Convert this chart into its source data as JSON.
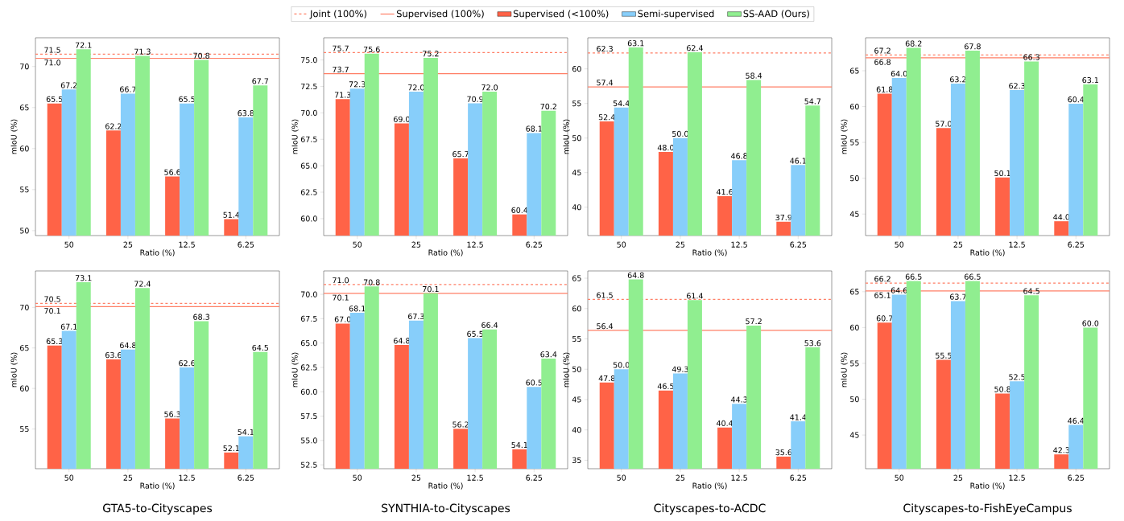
{
  "chart_data": [
    {
      "type": "bar",
      "xlabel": "Ratio (%)",
      "ylabel": "mIoU (%)",
      "categories": [
        "50",
        "25",
        "12.5",
        "6.25"
      ],
      "legend": "top",
      "series": [
        {
          "name": "Supervised (<100%)",
          "color": "#ff6347",
          "values": [
            65.5,
            62.2,
            56.6,
            51.4
          ],
          "value_labels": [
            "65.5",
            "62.2",
            "56.6",
            "51.4"
          ]
        },
        {
          "name": "Semi-supervised",
          "color": "#87cefa",
          "values": [
            67.2,
            66.7,
            65.5,
            63.8
          ],
          "value_labels": [
            "67.2",
            "66.7",
            "65.5",
            "63.8"
          ]
        },
        {
          "name": "SS-AAD (Ours)",
          "color": "#90ee90",
          "values": [
            72.1,
            71.3,
            70.8,
            67.7
          ],
          "value_labels": [
            "72.1",
            "71.3",
            "70.8",
            "67.7"
          ]
        }
      ],
      "ylim": [
        49.4,
        73.5
      ],
      "yticks": [
        50,
        55,
        60,
        65,
        70
      ],
      "ref_lines": [
        {
          "axis": "y",
          "value": 71.5,
          "label": "Joint (100%)",
          "color": "#ff7f66",
          "line_style": "dashed"
        },
        {
          "axis": "y",
          "value": 71.0,
          "label": "Supervised (100%)",
          "color": "#ff7f66",
          "line_style": "solid"
        }
      ],
      "annotations": [
        {
          "text": "71.5",
          "y": 71.5
        },
        {
          "text": "71.0",
          "y": 71.0
        }
      ]
    },
    {
      "type": "bar",
      "xlabel": "Ratio (%)",
      "ylabel": "mIoU (%)",
      "categories": [
        "50",
        "25",
        "12.5",
        "6.25"
      ],
      "series": [
        {
          "color": "#ff6347",
          "values": [
            71.3,
            69.0,
            65.7,
            60.4
          ],
          "value_labels": [
            "71.3",
            "69.0",
            "65.7",
            "60.4"
          ]
        },
        {
          "color": "#87cefa",
          "values": [
            72.3,
            72.0,
            70.9,
            68.1
          ],
          "value_labels": [
            "72.3",
            "72.0",
            "70.9",
            "68.1"
          ]
        },
        {
          "color": "#90ee90",
          "values": [
            75.6,
            75.2,
            72.0,
            70.2
          ],
          "value_labels": [
            "75.6",
            "75.2",
            "72.0",
            "70.2"
          ]
        }
      ],
      "ylim": [
        58.4,
        77.1
      ],
      "yticks": [
        {
          "value": 60,
          "label": "60.0"
        },
        62.5,
        {
          "value": 65,
          "label": "65.0"
        },
        67.5,
        {
          "value": 70,
          "label": "70.0"
        },
        72.5,
        {
          "value": 75,
          "label": "75.0"
        }
      ],
      "ref_lines": [
        {
          "axis": "y",
          "value": 75.7,
          "color": "#ff7f66",
          "line_style": "dashed"
        },
        {
          "axis": "y",
          "value": 73.7,
          "color": "#ff7f66",
          "line_style": "solid"
        }
      ],
      "annotations": [
        {
          "text": "75.7",
          "y": 75.7
        },
        {
          "text": "73.7",
          "y": 73.7
        }
      ]
    },
    {
      "type": "bar",
      "xlabel": "Ratio (%)",
      "ylabel": "mIoU (%)",
      "categories": [
        "50",
        "25",
        "12.5",
        "6.25"
      ],
      "series": [
        {
          "color": "#ff6347",
          "values": [
            52.4,
            48.0,
            41.6,
            37.9
          ],
          "value_labels": [
            "52.4",
            "48.0",
            "41.6",
            "37.9"
          ]
        },
        {
          "color": "#87cefa",
          "values": [
            54.4,
            50.0,
            46.8,
            46.1
          ],
          "value_labels": [
            "54.4",
            "50.0",
            "46.8",
            "46.1"
          ]
        },
        {
          "color": "#90ee90",
          "values": [
            63.1,
            62.4,
            58.4,
            54.7
          ],
          "value_labels": [
            "63.1",
            "62.4",
            "58.4",
            "54.7"
          ]
        }
      ],
      "ylim": [
        35.9,
        64.5
      ],
      "yticks": [
        40,
        45,
        50,
        55,
        60
      ],
      "ref_lines": [
        {
          "axis": "y",
          "value": 62.3,
          "color": "#ff7f66",
          "line_style": "dashed"
        },
        {
          "axis": "y",
          "value": 57.4,
          "color": "#ff7f66",
          "line_style": "solid"
        }
      ],
      "annotations": [
        {
          "text": "62.3",
          "y": 62.3
        },
        {
          "text": "57.4",
          "y": 57.4
        }
      ]
    },
    {
      "type": "bar",
      "xlabel": "Ratio (%)",
      "ylabel": "mIoU (%)",
      "categories": [
        "50",
        "25",
        "12.5",
        "6.25"
      ],
      "series": [
        {
          "color": "#ff6347",
          "values": [
            61.8,
            57.0,
            50.1,
            44.0
          ],
          "value_labels": [
            "61.8",
            "57.0",
            "50.1",
            "44.0"
          ]
        },
        {
          "color": "#87cefa",
          "values": [
            64.0,
            63.2,
            62.3,
            60.4
          ],
          "value_labels": [
            "64.0",
            "63.2",
            "62.3",
            "60.4"
          ]
        },
        {
          "color": "#90ee90",
          "values": [
            68.2,
            67.8,
            66.3,
            63.1
          ],
          "value_labels": [
            "68.2",
            "67.8",
            "66.3",
            "63.1"
          ]
        }
      ],
      "ylim": [
        42.0,
        69.6
      ],
      "yticks": [
        45,
        50,
        55,
        60,
        65
      ],
      "ref_lines": [
        {
          "axis": "y",
          "value": 67.2,
          "color": "#ff7f66",
          "line_style": "dashed"
        },
        {
          "axis": "y",
          "value": 66.8,
          "color": "#ff7f66",
          "line_style": "solid"
        }
      ],
      "annotations": [
        {
          "text": "67.2",
          "y": 67.2
        },
        {
          "text": "66.8",
          "y": 66.8
        }
      ]
    },
    {
      "type": "bar",
      "title": "GTA5-to-Cityscapes",
      "xlabel": "Ratio (%)",
      "ylabel": "mIoU (%)",
      "categories": [
        "50",
        "25",
        "12.5",
        "6.25"
      ],
      "series": [
        {
          "color": "#ff6347",
          "values": [
            65.3,
            63.6,
            56.3,
            52.1
          ],
          "value_labels": [
            "65.3",
            "63.6",
            "56.3",
            "52.1"
          ]
        },
        {
          "color": "#87cefa",
          "values": [
            67.1,
            64.8,
            62.6,
            54.1
          ],
          "value_labels": [
            "67.1",
            "64.8",
            "62.6",
            "54.1"
          ]
        },
        {
          "color": "#90ee90",
          "values": [
            73.1,
            72.4,
            68.3,
            64.5
          ],
          "value_labels": [
            "73.1",
            "72.4",
            "68.3",
            "64.5"
          ]
        }
      ],
      "ylim": [
        50.1,
        74.5
      ],
      "yticks": [
        55,
        60,
        65,
        70
      ],
      "ref_lines": [
        {
          "axis": "y",
          "value": 70.5,
          "color": "#ff7f66",
          "line_style": "dashed"
        },
        {
          "axis": "y",
          "value": 70.1,
          "color": "#ff7f66",
          "line_style": "solid"
        }
      ],
      "annotations": [
        {
          "text": "70.5",
          "y": 70.5
        },
        {
          "text": "70.1",
          "y": 70.1
        }
      ]
    },
    {
      "type": "bar",
      "title": "SYNTHIA-to-Cityscapes",
      "xlabel": "Ratio (%)",
      "ylabel": "mIoU (%)",
      "categories": [
        "50",
        "25",
        "12.5",
        "6.25"
      ],
      "series": [
        {
          "color": "#ff6347",
          "values": [
            67.0,
            64.8,
            56.2,
            54.1
          ],
          "value_labels": [
            "67.0",
            "64.8",
            "56.2",
            "54.1"
          ]
        },
        {
          "color": "#87cefa",
          "values": [
            68.1,
            67.3,
            65.5,
            60.5
          ],
          "value_labels": [
            "68.1",
            "67.3",
            "65.5",
            "60.5"
          ]
        },
        {
          "color": "#90ee90",
          "values": [
            70.8,
            70.1,
            66.4,
            63.4
          ],
          "value_labels": [
            "70.8",
            "70.1",
            "66.4",
            "63.4"
          ]
        }
      ],
      "ylim": [
        52.1,
        72.4
      ],
      "yticks": [
        52.5,
        {
          "value": 55,
          "label": "55.0"
        },
        57.5,
        {
          "value": 60,
          "label": "60.0"
        },
        62.5,
        {
          "value": 65,
          "label": "65.0"
        },
        67.5,
        {
          "value": 70,
          "label": "70.0"
        }
      ],
      "ref_lines": [
        {
          "axis": "y",
          "value": 71.0,
          "color": "#ff7f66",
          "line_style": "dashed"
        },
        {
          "axis": "y",
          "value": 70.1,
          "color": "#ff7f66",
          "line_style": "solid"
        }
      ],
      "annotations": [
        {
          "text": "71.0",
          "y": 71.0
        },
        {
          "text": "70.1",
          "y": 70.1
        }
      ]
    },
    {
      "type": "bar",
      "title": "Cityscapes-to-ACDC",
      "xlabel": "Ratio (%)",
      "ylabel": "mIoU (%)",
      "categories": [
        "50",
        "25",
        "12.5",
        "6.25"
      ],
      "series": [
        {
          "color": "#ff6347",
          "values": [
            47.8,
            46.5,
            40.4,
            35.6
          ],
          "value_labels": [
            "47.8",
            "46.5",
            "40.4",
            "35.6"
          ]
        },
        {
          "color": "#87cefa",
          "values": [
            50.0,
            49.3,
            44.3,
            41.4
          ],
          "value_labels": [
            "50.0",
            "49.3",
            "44.3",
            "41.4"
          ]
        },
        {
          "color": "#90ee90",
          "values": [
            64.8,
            61.4,
            57.2,
            53.6
          ],
          "value_labels": [
            "64.8",
            "61.4",
            "57.2",
            "53.6"
          ]
        }
      ],
      "ylim": [
        33.6,
        66.2
      ],
      "yticks": [
        35,
        40,
        45,
        50,
        55,
        60,
        65
      ],
      "ref_lines": [
        {
          "axis": "y",
          "value": 61.5,
          "color": "#ff7f66",
          "line_style": "dashed"
        },
        {
          "axis": "y",
          "value": 56.4,
          "color": "#ff7f66",
          "line_style": "solid"
        }
      ],
      "annotations": [
        {
          "text": "61.5",
          "y": 61.5
        },
        {
          "text": "56.4",
          "y": 56.4
        }
      ]
    },
    {
      "type": "bar",
      "title": "Cityscapes-to-FishEyeCampus",
      "xlabel": "Ratio (%)",
      "ylabel": "mIoU (%)",
      "categories": [
        "50",
        "25",
        "12.5",
        "6.25"
      ],
      "series": [
        {
          "color": "#ff6347",
          "values": [
            60.7,
            55.5,
            50.8,
            42.3
          ],
          "value_labels": [
            "60.7",
            "55.5",
            "50.8",
            "42.3"
          ]
        },
        {
          "color": "#87cefa",
          "values": [
            64.6,
            63.7,
            52.5,
            46.4
          ],
          "value_labels": [
            "64.6",
            "63.7",
            "52.5",
            "46.4"
          ]
        },
        {
          "color": "#90ee90",
          "values": [
            66.5,
            66.5,
            64.5,
            60.0
          ],
          "value_labels": [
            "66.5",
            "66.5",
            "64.5",
            "60.0"
          ]
        }
      ],
      "ylim": [
        40.3,
        67.9
      ],
      "yticks": [
        45,
        50,
        55,
        60,
        65
      ],
      "ref_lines": [
        {
          "axis": "y",
          "value": 66.2,
          "color": "#ff7f66",
          "line_style": "dashed"
        },
        {
          "axis": "y",
          "value": 65.1,
          "color": "#ff7f66",
          "line_style": "solid"
        }
      ],
      "annotations": [
        {
          "text": "66.2",
          "y": 66.2
        },
        {
          "text": "65.1",
          "y": 65.1
        }
      ]
    }
  ]
}
